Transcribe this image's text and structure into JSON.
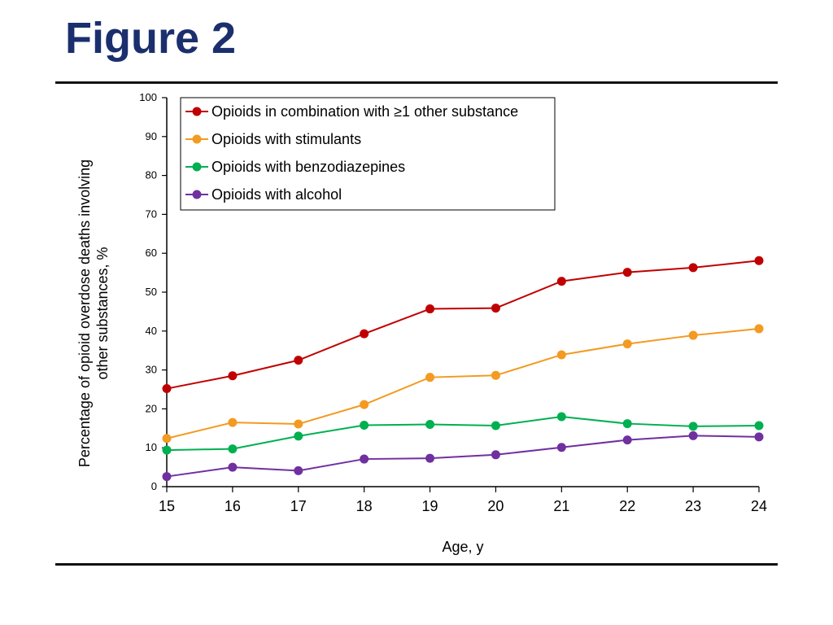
{
  "slide": {
    "title": "Figure 2"
  },
  "chart_data": {
    "type": "line",
    "title": "",
    "xlabel": "Age, y",
    "ylabel": "Percentage of opioid overdose deaths involving other substances, %",
    "ylabel_lines": [
      "Percentage of opioid overdose deaths involving",
      "other substances, %"
    ],
    "x": [
      15,
      16,
      17,
      18,
      19,
      20,
      21,
      22,
      23,
      24
    ],
    "xlim": [
      15,
      24
    ],
    "ylim": [
      0,
      100
    ],
    "yticks": [
      0,
      10,
      20,
      30,
      40,
      50,
      60,
      70,
      80,
      90,
      100
    ],
    "grid": false,
    "legend_position": "top-left",
    "series": [
      {
        "name": "Opioids in combination with ≥1 other substance",
        "color": "#c00000",
        "values": [
          25.2,
          28.5,
          32.5,
          39.3,
          45.7,
          45.9,
          52.8,
          55.1,
          56.3,
          58.1
        ]
      },
      {
        "name": "Opioids with stimulants",
        "color": "#f39a21",
        "values": [
          12.4,
          16.5,
          16.1,
          21.1,
          28.1,
          28.6,
          33.9,
          36.7,
          38.9,
          40.6
        ]
      },
      {
        "name": "Opioids with benzodiazepines",
        "color": "#00b050",
        "values": [
          9.4,
          9.7,
          13.0,
          15.8,
          16.0,
          15.7,
          18.0,
          16.2,
          15.5,
          15.7
        ]
      },
      {
        "name": "Opioids with alcohol",
        "color": "#7030a0",
        "values": [
          2.6,
          5.0,
          4.1,
          7.1,
          7.3,
          8.2,
          10.1,
          12.0,
          13.1,
          12.8
        ]
      }
    ]
  }
}
